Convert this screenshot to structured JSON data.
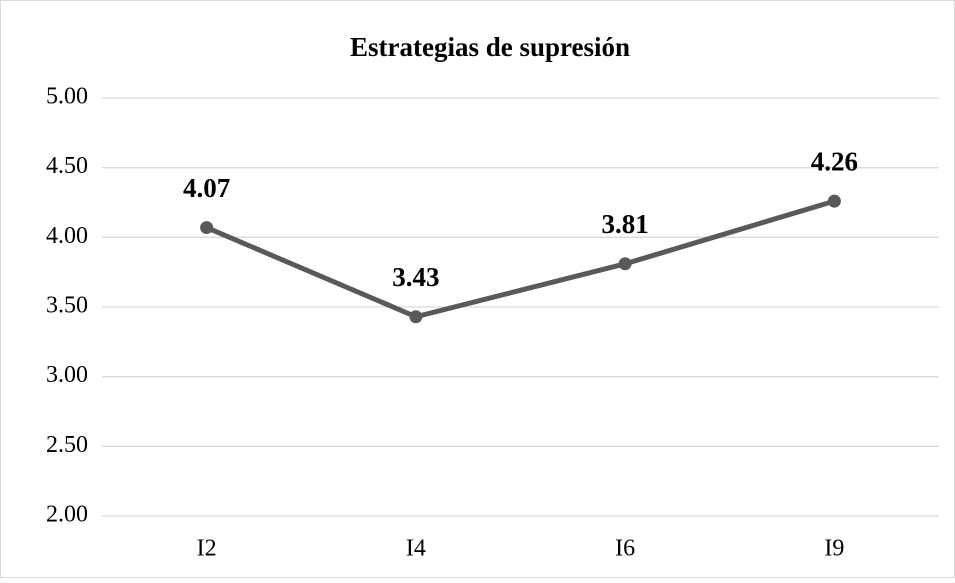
{
  "chart_data": {
    "type": "line",
    "title": "Estrategias de supresión",
    "categories": [
      "I2",
      "I4",
      "I6",
      "I9"
    ],
    "values": [
      4.07,
      3.43,
      3.81,
      4.26
    ],
    "color": "#595959",
    "ylim": [
      2,
      5
    ],
    "yticks": [
      {
        "value": 2,
        "label": "2.00"
      },
      {
        "value": 2.5,
        "label": "2.50"
      },
      {
        "value": 3,
        "label": "3.00"
      },
      {
        "value": 3.5,
        "label": "3.50"
      },
      {
        "value": 4,
        "label": "4.00"
      },
      {
        "value": 4.5,
        "label": "4.50"
      },
      {
        "value": 5,
        "label": "5.00"
      }
    ],
    "grid": true
  }
}
